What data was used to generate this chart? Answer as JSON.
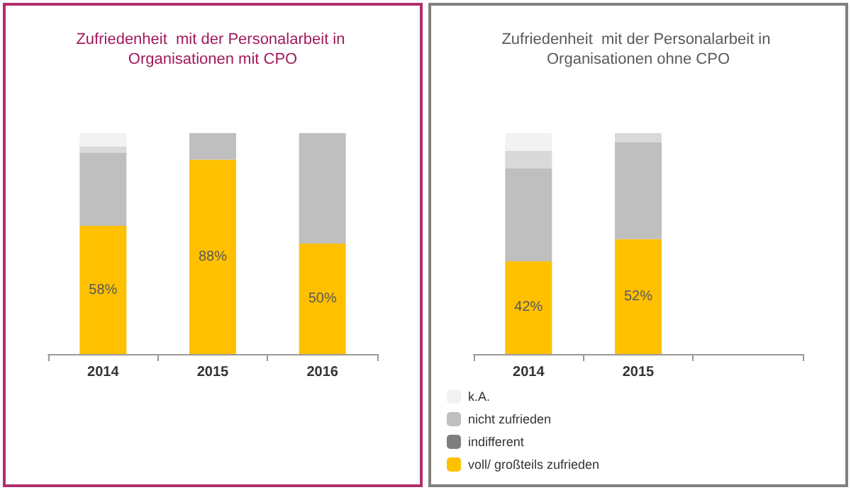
{
  "chart_data": [
    {
      "type": "bar",
      "title": "Zufriedenheit  mit der Personalarbeit in Organisationen mit CPO",
      "categories": [
        "2014",
        "2015",
        "2016"
      ],
      "stacked": true,
      "ylim": [
        0,
        100
      ],
      "tick_labels": "x",
      "legend": false,
      "grid": false,
      "series": [
        {
          "color": "#ffc000",
          "values": [
            58,
            88,
            50
          ],
          "value_labels": [
            "58%",
            "88%",
            "50%"
          ]
        },
        {
          "color": "#7f7f7f",
          "values": [
            0,
            0,
            0
          ]
        },
        {
          "color": "#bfbfbf",
          "values": [
            33,
            12,
            50
          ]
        },
        {
          "color": "#d9d9d9",
          "values": [
            3,
            0,
            0
          ]
        },
        {
          "color": "#f2f2f2",
          "values": [
            6,
            0,
            0
          ]
        }
      ]
    },
    {
      "type": "bar",
      "title": "Zufriedenheit  mit der Personalarbeit in Organisationen ohne CPO",
      "categories": [
        "2014",
        "2015",
        null
      ],
      "stacked": true,
      "ylim": [
        0,
        100
      ],
      "tick_labels": "x",
      "legend": "bottom left",
      "grid": false,
      "series": [
        {
          "name": "voll/ großteils zufrieden",
          "color": "#ffc000",
          "values": [
            42,
            52,
            null
          ],
          "value_labels": [
            "42%",
            "52%",
            null
          ]
        },
        {
          "name": "indifferent",
          "color": "#7f7f7f",
          "values": [
            0,
            0,
            null
          ]
        },
        {
          "name": "nicht zufrieden",
          "color": "#bfbfbf",
          "values": [
            42,
            44,
            null
          ]
        },
        {
          "color": "#d9d9d9",
          "values": [
            8,
            4,
            null
          ]
        },
        {
          "name": "k.A.",
          "color": "#f2f2f2",
          "values": [
            8,
            0,
            null
          ]
        }
      ]
    }
  ]
}
